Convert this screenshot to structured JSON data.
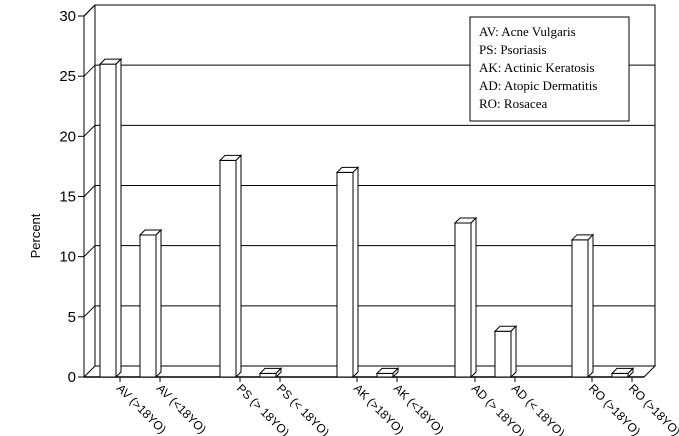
{
  "chart_data": {
    "type": "bar",
    "title": "",
    "xlabel": "",
    "ylabel": "Percent",
    "ylim": [
      0,
      30
    ],
    "yticks": [
      0,
      5,
      10,
      15,
      20,
      25,
      30
    ],
    "grid": true,
    "legend_position": "top-right",
    "categories": [
      "AV (>18YO)",
      "AV (<18YO)",
      "PS (> 18YO)",
      "PS (< 18YO)",
      "AK (>18YO)",
      "AK (<18YO)",
      "AD (> 18YO)",
      "AD (< 18YO)",
      "RO (>18YO)",
      "RO (>18YO)"
    ],
    "values": [
      26,
      11.8,
      18,
      0.3,
      17,
      0.3,
      12.8,
      3.8,
      11.4,
      0.3
    ],
    "legend": [
      "AV: Acne Vulgaris",
      "PS:  Psoriasis",
      "AK: Actinic Keratosis",
      "AD: Atopic Dermatitis",
      "RO: Rosacea"
    ],
    "colors": {
      "bar_fill": "#ffffff",
      "stroke": "#000000"
    }
  }
}
